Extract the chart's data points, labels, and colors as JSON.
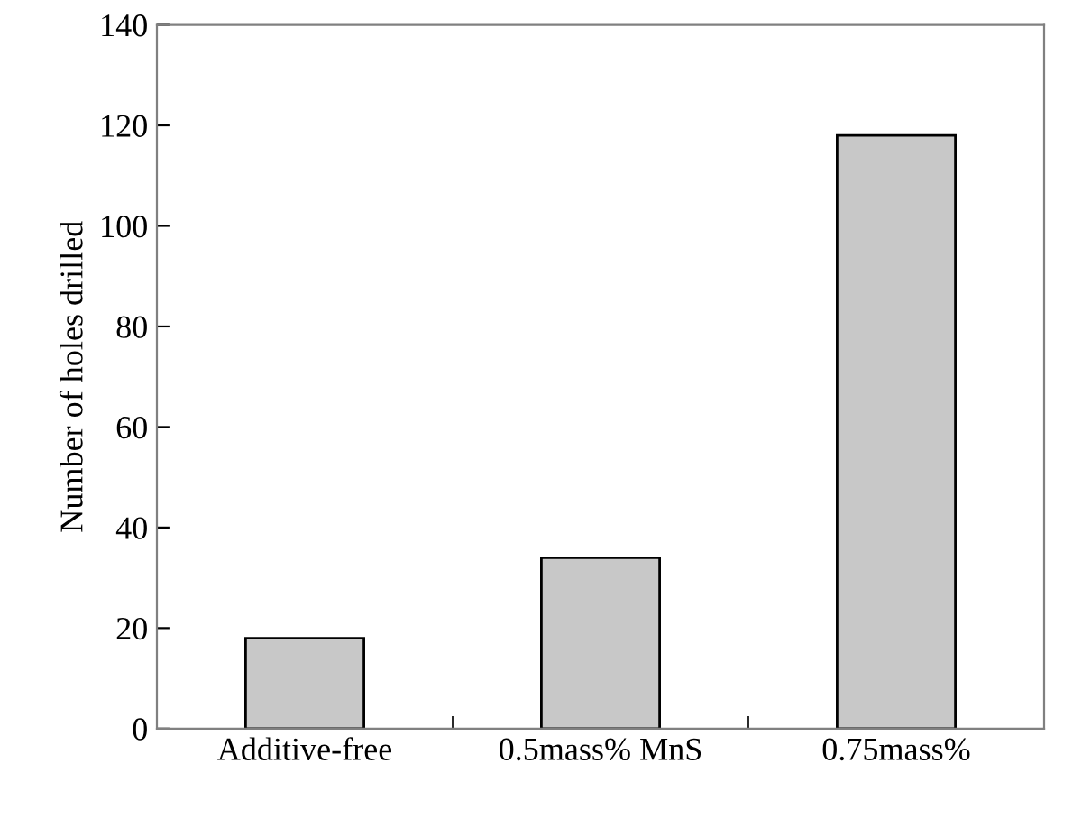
{
  "chart_data": {
    "type": "bar",
    "ylabel": "Number of holes drilled",
    "categories": [
      "Additive-free",
      "0.5mass% MnS",
      "0.75mass%"
    ],
    "values": [
      18,
      34,
      118
    ],
    "color": "#c8c8c8",
    "ylim": [
      0,
      140
    ],
    "yticks": [
      0,
      20,
      40,
      60,
      80,
      100,
      120,
      140
    ],
    "grid": false,
    "legend": false
  }
}
